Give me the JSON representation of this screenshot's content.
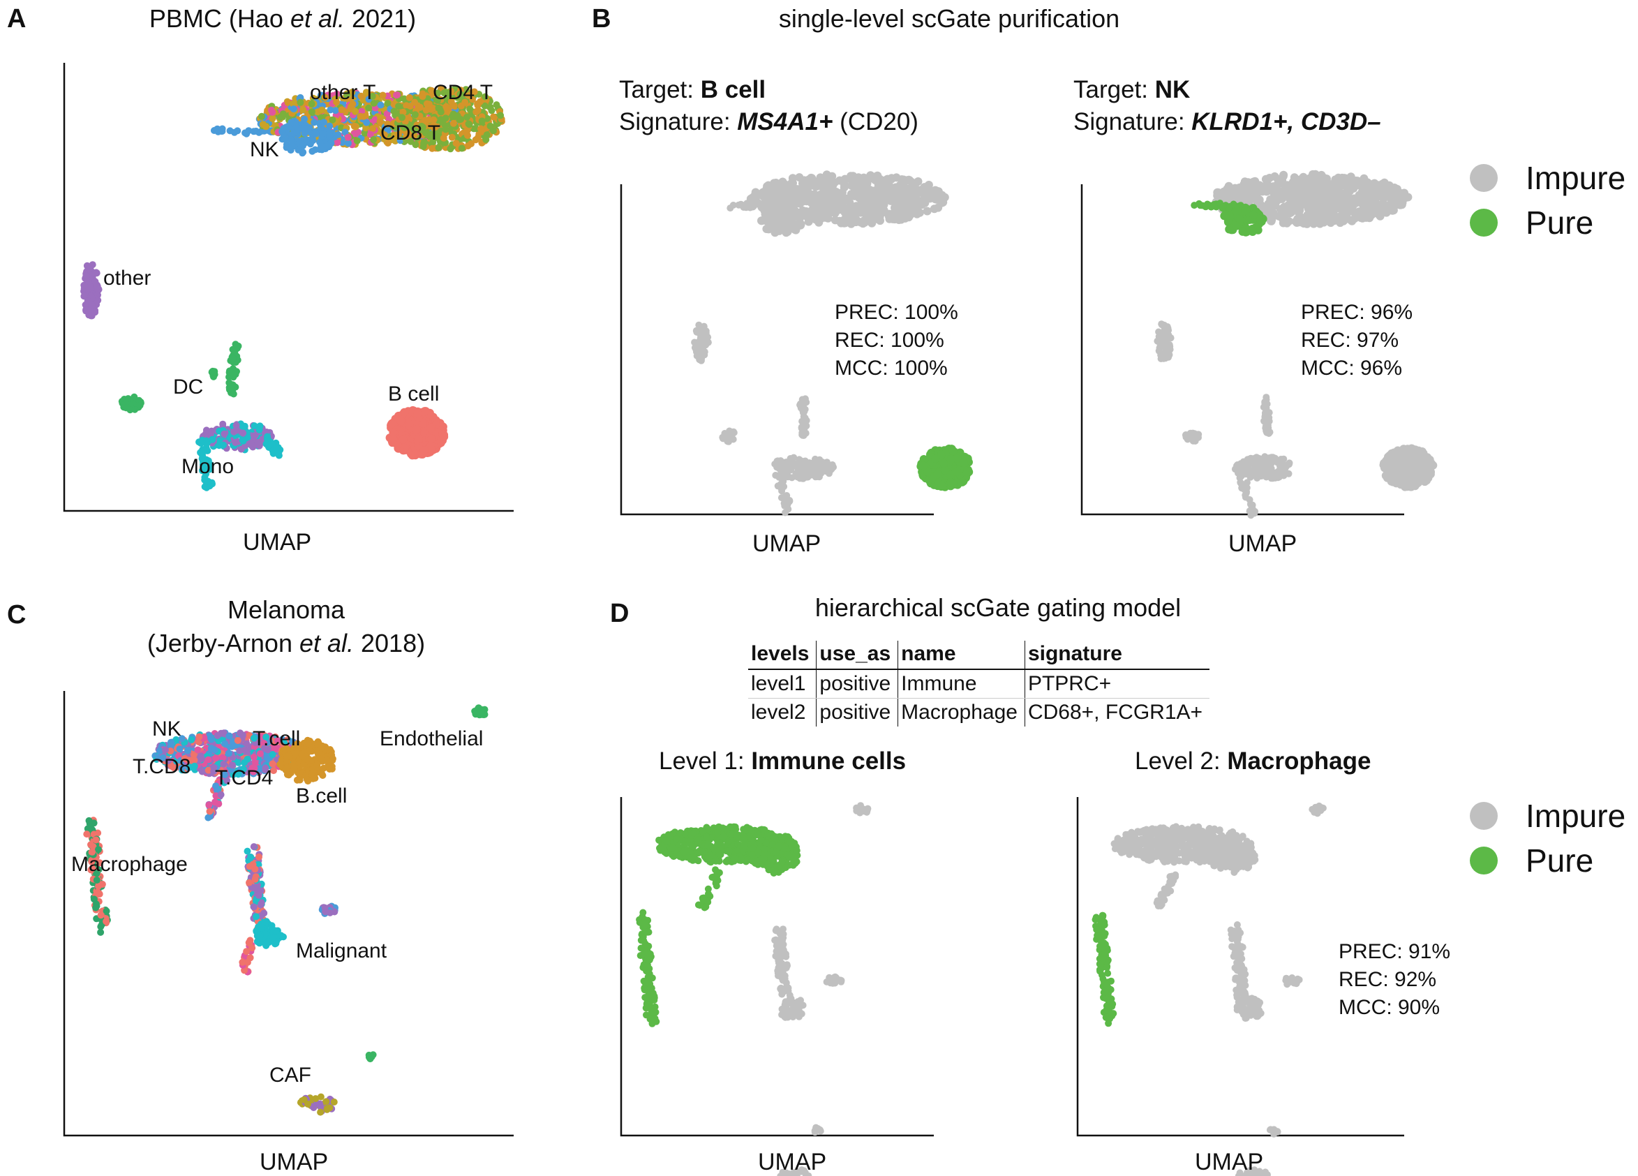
{
  "colors": {
    "impure": "#c0c0c0",
    "pure": "#5cb947"
  },
  "panel_a": {
    "letter": "A",
    "title_pre": "PBMC (Hao ",
    "title_italic": "et al.",
    "title_post": " 2021)",
    "axis_label": "UMAP",
    "cluster_labels": [
      "other T",
      "CD4 T",
      "CD8 T",
      "NK",
      "other",
      "DC",
      "B cell",
      "Mono"
    ]
  },
  "panel_b": {
    "letter": "B",
    "title": "single-level scGate purification",
    "left": {
      "target_prefix": "Target: ",
      "target": "B cell",
      "signature_prefix": "Signature: ",
      "signature": "MS4A1+",
      "signature_suffix": " (CD20)",
      "stats": [
        "PREC: 100%",
        "REC: 100%",
        "MCC: 100%"
      ],
      "axis_label": "UMAP"
    },
    "right": {
      "target_prefix": "Target: ",
      "target": "NK",
      "signature_prefix": "Signature: ",
      "signature": "KLRD1+, CD3D–",
      "signature_suffix": "",
      "stats": [
        "PREC: 96%",
        "REC: 97%",
        "MCC: 96%"
      ],
      "axis_label": "UMAP"
    },
    "legend": [
      "Impure",
      "Pure"
    ]
  },
  "panel_c": {
    "letter": "C",
    "title_line1": "Melanoma",
    "title_pre": "(Jerby-Arnon ",
    "title_italic": "et al.",
    "title_post": " 2018)",
    "axis_label": "UMAP",
    "cluster_labels": [
      "NK",
      "T.cell",
      "T.CD8",
      "T.CD4",
      "B.cell",
      "Endothelial",
      "Macrophage",
      "Malignant",
      "CAF"
    ]
  },
  "panel_d": {
    "letter": "D",
    "title": "hierarchical scGate gating model",
    "table": {
      "headers": [
        "levels",
        "use_as",
        "name",
        "signature"
      ],
      "rows": [
        [
          "level1",
          "positive",
          "Immune",
          "PTPRC+"
        ],
        [
          "level2",
          "positive",
          "Macrophage",
          "CD68+, FCGR1A+"
        ]
      ]
    },
    "left": {
      "prefix": "Level 1: ",
      "name": "Immune cells",
      "axis_label": "UMAP"
    },
    "right": {
      "prefix": "Level 2: ",
      "name": "Macrophage",
      "axis_label": "UMAP",
      "stats": [
        "PREC: 91%",
        "REC: 92%",
        "MCC: 90%"
      ]
    },
    "legend": [
      "Impure",
      "Pure"
    ]
  }
}
